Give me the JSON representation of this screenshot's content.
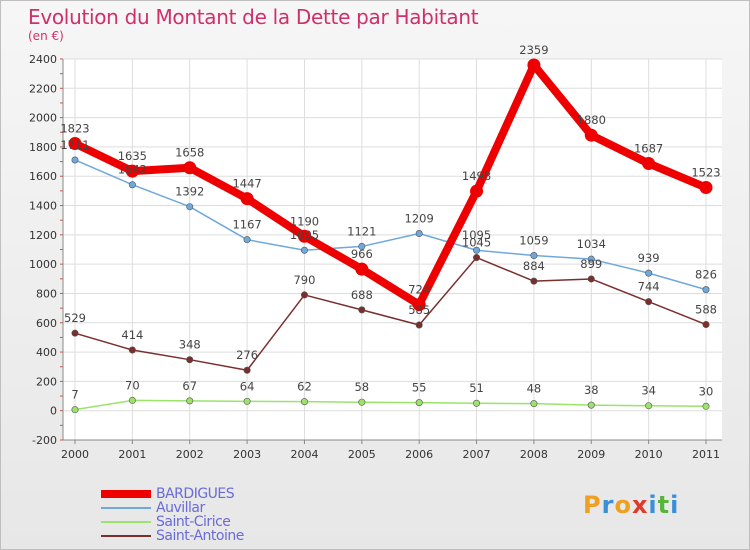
{
  "header": {
    "title": "Evolution du Montant de la Dette par Habitant",
    "subtitle": "(en €)"
  },
  "logo": {
    "text": "Proxiti",
    "colors": [
      "#f0a020",
      "#3b8fd9",
      "#f0a020",
      "#e03a2a",
      "#3b8fd9",
      "#59b53a",
      "#3b8fd9"
    ]
  },
  "chart_data": {
    "type": "line",
    "title": "Evolution du Montant de la Dette par Habitant",
    "subtitle": "(en €)",
    "x": [
      "2000",
      "2001",
      "2002",
      "2003",
      "2004",
      "2005",
      "2006",
      "2007",
      "2008",
      "2009",
      "2010",
      "2011"
    ],
    "ylim": [
      -200,
      2400
    ],
    "yticks": [
      -200,
      0,
      200,
      400,
      600,
      800,
      1000,
      1200,
      1400,
      1600,
      1800,
      2000,
      2200,
      2400
    ],
    "grid": true,
    "legend_position": "bottom-left",
    "series": [
      {
        "name": "BARDIGUES",
        "color": "#ee0000",
        "width": "thick",
        "values": [
          1823,
          1635,
          1658,
          1447,
          1190,
          966,
          724,
          1498,
          2359,
          1880,
          1687,
          1523
        ]
      },
      {
        "name": "Auvillar",
        "color": "#6fa8dc",
        "width": "thin",
        "values": [
          1711,
          1542,
          1392,
          1167,
          1095,
          1121,
          1209,
          1095,
          1059,
          1034,
          939,
          826
        ]
      },
      {
        "name": "Saint-Cirice",
        "color": "#9be36b",
        "width": "thin",
        "values": [
          7,
          70,
          67,
          64,
          62,
          58,
          55,
          51,
          48,
          38,
          34,
          30
        ]
      },
      {
        "name": "Saint-Antoine",
        "color": "#7a2e2e",
        "width": "thin",
        "values": [
          529,
          414,
          348,
          276,
          790,
          688,
          585,
          1045,
          884,
          899,
          744,
          588
        ]
      }
    ]
  }
}
